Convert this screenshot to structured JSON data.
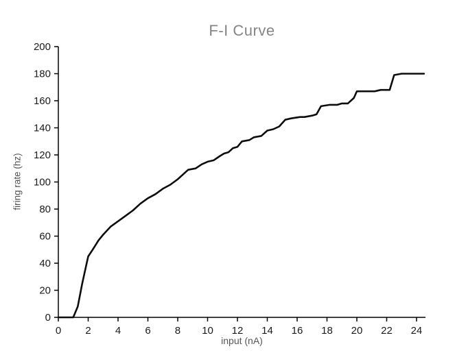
{
  "chart_data": {
    "type": "line",
    "title": "F-I Curve",
    "xlabel": "input (nA)",
    "ylabel": "firing rate (hz)",
    "xlim": [
      0,
      24.6
    ],
    "ylim": [
      0,
      200
    ],
    "xticks": [
      0,
      2,
      4,
      6,
      8,
      10,
      12,
      14,
      16,
      18,
      20,
      22,
      24
    ],
    "yticks": [
      0,
      20,
      40,
      60,
      80,
      100,
      120,
      140,
      160,
      180,
      200
    ],
    "grid": false,
    "legend_position": "none",
    "series": [
      {
        "name": "firing rate",
        "color": "#0d0d0d",
        "x": [
          0,
          1,
          1.3,
          1.6,
          2,
          2.3,
          2.7,
          3,
          3.5,
          4,
          4.5,
          5,
          5.5,
          6,
          6.5,
          7,
          7.5,
          8,
          8.4,
          8.7,
          9.2,
          9.6,
          10,
          10.4,
          10.8,
          11.1,
          11.4,
          11.7,
          12,
          12.3,
          12.8,
          13.1,
          13.6,
          14,
          14.4,
          14.8,
          15.2,
          15.6,
          16.2,
          16.5,
          17,
          17.3,
          17.6,
          18.2,
          18.7,
          19,
          19.4,
          19.8,
          20,
          20.6,
          21.2,
          21.6,
          22.2,
          22.5,
          23,
          23.5,
          24,
          24.5
        ],
        "y": [
          0,
          0,
          8,
          25,
          45,
          50,
          57,
          61,
          67,
          71,
          75,
          79,
          84,
          88,
          91,
          95,
          98,
          102,
          106,
          109,
          110,
          113,
          115,
          116,
          119,
          121,
          122,
          125,
          126,
          130,
          131,
          133,
          134,
          138,
          139,
          141,
          146,
          147,
          148,
          148,
          149,
          150,
          156,
          157,
          157,
          158,
          158,
          162,
          167,
          167,
          167,
          168,
          168,
          179,
          180,
          180,
          180,
          180
        ]
      }
    ]
  }
}
